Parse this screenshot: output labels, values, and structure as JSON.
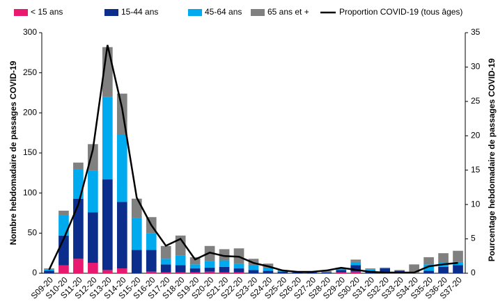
{
  "chart_data": {
    "type": "bar-line",
    "y_label": "Nombre hebdomadaire de passages COVID-19",
    "y2_label": "Pourcentage hebdomadaire de passages COVID-19",
    "categories": [
      "S09-20",
      "S10-20",
      "S11-20",
      "S12-20",
      "S13-20",
      "S14-20",
      "S15-20",
      "S16-20",
      "S17-20",
      "S18-20",
      "S19-20",
      "S20-20",
      "S21-20",
      "S22-20",
      "S23-20",
      "S24-20",
      "S25-20",
      "S26-20",
      "S27-20",
      "S28-20",
      "S29-20",
      "S30-20",
      "S31-20",
      "S32-20",
      "S33-20",
      "S34-20",
      "S35-20",
      "S36-20",
      "S37-20"
    ],
    "series": [
      {
        "name": "< 15 ans",
        "color": "#e8196e",
        "values": [
          0,
          10,
          18,
          13,
          4,
          6,
          0,
          2,
          1,
          1,
          1,
          2,
          1,
          1,
          0,
          0,
          0,
          0,
          0,
          0,
          1,
          2,
          0,
          0,
          0,
          0,
          0,
          0,
          0
        ]
      },
      {
        "name": "15-44 ans",
        "color": "#0b2d8c",
        "values": [
          3,
          37,
          75,
          63,
          113,
          83,
          29,
          27,
          10,
          9,
          5,
          5,
          7,
          5,
          4,
          3,
          2,
          1,
          1,
          1,
          3,
          8,
          3,
          6,
          3,
          0,
          3,
          8,
          10
        ]
      },
      {
        "name": "45-64 ans",
        "color": "#00aaee",
        "values": [
          2,
          25,
          37,
          52,
          103,
          84,
          40,
          21,
          7,
          12,
          5,
          8,
          8,
          6,
          6,
          4,
          1,
          0,
          0,
          0,
          3,
          4,
          2,
          1,
          0,
          0,
          8,
          5,
          4
        ]
      },
      {
        "name": "65 ans et +",
        "color": "#808080",
        "values": [
          1,
          6,
          8,
          33,
          62,
          51,
          24,
          20,
          16,
          25,
          9,
          19,
          14,
          19,
          8,
          5,
          1,
          1,
          1,
          2,
          0,
          3,
          1,
          0,
          1,
          11,
          9,
          12,
          14
        ]
      },
      {
        "name": "Proportion COVID-19 (tous âges)",
        "color": "#000000",
        "axis": "y2",
        "line": true,
        "values": [
          0.5,
          5,
          10,
          18,
          33.2,
          24,
          11,
          7,
          4,
          5,
          2,
          3,
          2.5,
          2.4,
          1.5,
          1,
          0.4,
          0.2,
          0.2,
          0.4,
          0.8,
          0.5,
          0.2,
          0.1,
          0.1,
          0.1,
          1,
          1.3,
          1.5
        ]
      }
    ],
    "ylim": [
      0,
      300
    ],
    "yticks": [
      0,
      50,
      100,
      150,
      200,
      250,
      300
    ],
    "y2lim": [
      0,
      35
    ],
    "y2ticks": [
      0,
      5,
      10,
      15,
      20,
      25,
      30,
      35
    ]
  }
}
